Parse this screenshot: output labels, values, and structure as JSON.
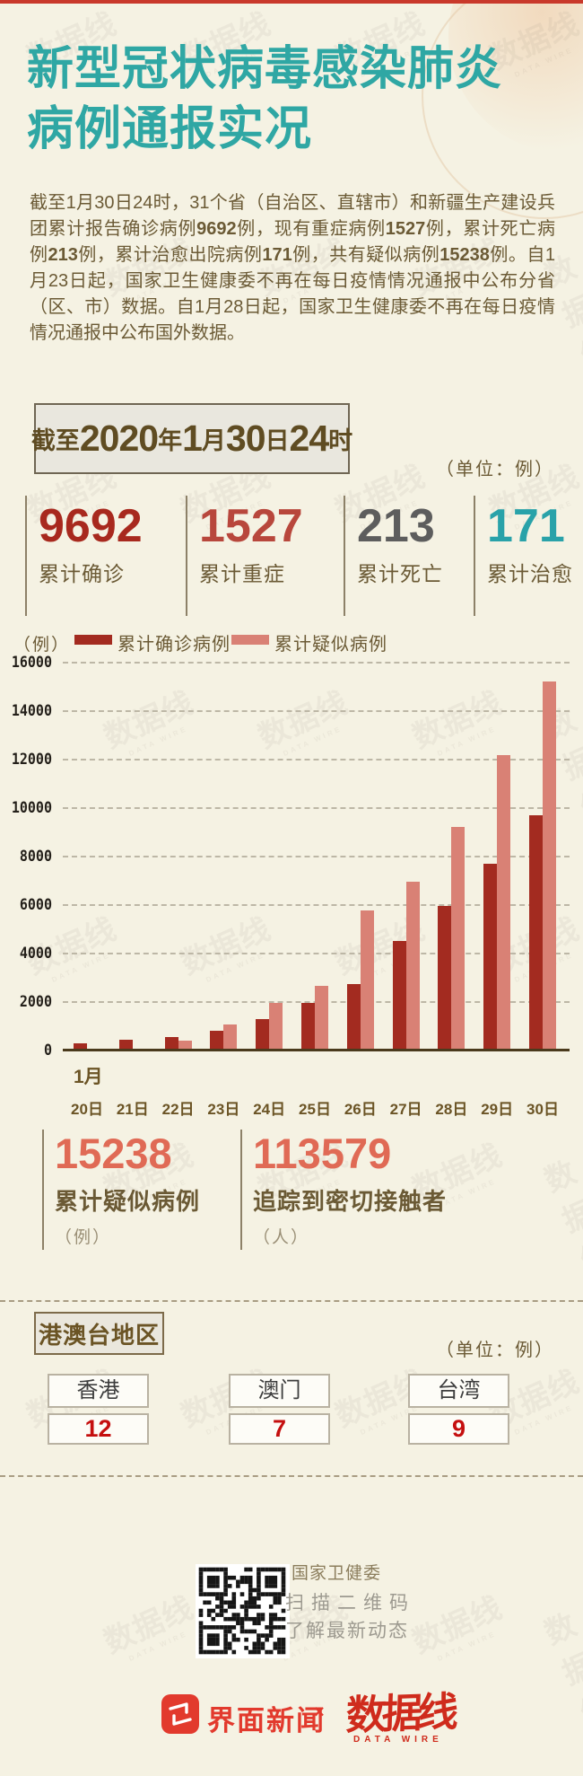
{
  "header": {
    "title_line1": "新型冠状病毒感染肺炎",
    "title_line2": "病例通报实况",
    "title_color": "#2fa7a4"
  },
  "intro": {
    "segments": [
      {
        "t": "截至1月30日24时，31个省（自治区、直辖市）和新疆生产建设兵团累计报告确诊病例",
        "b": 0
      },
      {
        "t": "9692",
        "b": 1
      },
      {
        "t": "例，现有重症病例",
        "b": 0
      },
      {
        "t": "1527",
        "b": 1
      },
      {
        "t": "例，累计死亡病例",
        "b": 0
      },
      {
        "t": "213",
        "b": 1
      },
      {
        "t": "例，累计治愈出院病例",
        "b": 0
      },
      {
        "t": "171",
        "b": 1
      },
      {
        "t": "例，共有疑似病例",
        "b": 0
      },
      {
        "t": "15238",
        "b": 1
      },
      {
        "t": "例。自1月23日起，国家卫生健康委不再在每日疫情情况通报中公布分省（区、市）数据。自1月28日起，国家卫生健康委不再在每日疫情情况通报中公布国外数据。",
        "b": 0
      }
    ]
  },
  "date_box": {
    "segments": [
      {
        "t": "截至",
        "big": 0
      },
      {
        "t": "2020",
        "big": 1
      },
      {
        "t": "年",
        "big": 0
      },
      {
        "t": "1",
        "big": 1
      },
      {
        "t": "月",
        "big": 0
      },
      {
        "t": "30",
        "big": 1
      },
      {
        "t": "日",
        "big": 0
      },
      {
        "t": "24",
        "big": 1
      },
      {
        "t": "时",
        "big": 0
      }
    ]
  },
  "unit_note_1": "（单位：例）",
  "summary_stats": [
    {
      "value": "9692",
      "label": "累计确诊",
      "color": "#a8291e"
    },
    {
      "value": "1527",
      "label": "累计重症",
      "color": "#b8473c"
    },
    {
      "value": "213",
      "label": "累计死亡",
      "color": "#5d5d5d"
    },
    {
      "value": "171",
      "label": "累计治愈",
      "color": "#29a2a9"
    }
  ],
  "chart_data": {
    "type": "bar",
    "unit_label": "（例）",
    "x_axis_prefix": "1月",
    "categories": [
      "20日",
      "21日",
      "22日",
      "23日",
      "24日",
      "25日",
      "26日",
      "27日",
      "28日",
      "29日",
      "30日"
    ],
    "series": [
      {
        "name": "累计确诊病例",
        "color": "#a32b20",
        "values": [
          291,
          440,
          571,
          830,
          1287,
          1975,
          2744,
          4515,
          5974,
          7711,
          9692
        ]
      },
      {
        "name": "累计疑似病例",
        "color": "#d98175",
        "values": [
          54,
          37,
          393,
          1072,
          1965,
          2684,
          5794,
          6973,
          9239,
          12167,
          15238
        ]
      }
    ],
    "ylim": [
      0,
      16000
    ],
    "ytick_step": 2000,
    "grid": "dashed-horizontal",
    "legend_position": "top"
  },
  "big_stats": [
    {
      "value": "15238",
      "label": "累计疑似病例",
      "unit": "（例）"
    },
    {
      "value": "113579",
      "label": "追踪到密切接触者",
      "unit": "（人）"
    }
  ],
  "regions": {
    "box_label": "港澳台地区",
    "unit_note": "（单位：例）",
    "items": [
      {
        "name": "香港",
        "value": "12"
      },
      {
        "name": "澳门",
        "value": "7"
      },
      {
        "name": "台湾",
        "value": "9"
      }
    ]
  },
  "footer": {
    "source": "数据来源：国家卫健委",
    "qr_caption_1": "扫描二维码",
    "qr_caption_2": "了解最新动态",
    "brand_1": "界面新闻",
    "separator": "×",
    "brand_2": "数据线",
    "brand_2_sub": "DATA WIRE"
  },
  "watermark": {
    "text": "数据线",
    "subtext": "DATA WIRE"
  }
}
